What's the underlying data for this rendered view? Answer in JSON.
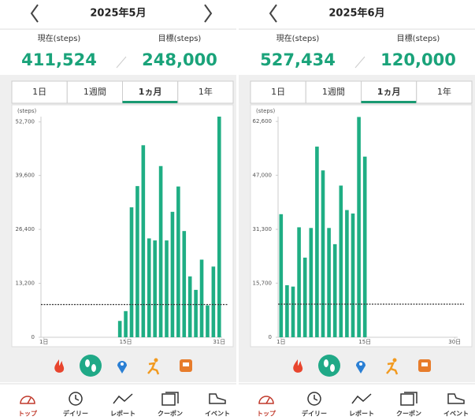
{
  "panels": [
    {
      "title": "2025年5月",
      "current_label": "現在(steps)",
      "current_value": "411,524",
      "goal_label": "目標(steps)",
      "goal_value": "248,000",
      "tabs": [
        "1日",
        "1週間",
        "1ヵ月",
        "1年"
      ],
      "selected_tab": 2,
      "chart": {
        "type": "bar",
        "y_label": "(steps)",
        "x": [
          14,
          15,
          16,
          17,
          18,
          19,
          20,
          21,
          22,
          23,
          24,
          25,
          26,
          27,
          28,
          29,
          30,
          31
        ],
        "values": [
          4000,
          6400,
          31800,
          37000,
          47000,
          24200,
          23700,
          41900,
          23700,
          30700,
          36900,
          26000,
          14900,
          11600,
          19000,
          7800,
          17300,
          54000
        ],
        "color": "#1fae84",
        "xlim": [
          0.5,
          31.5
        ],
        "xticks": [
          {
            "value": 1,
            "label": "1日"
          },
          {
            "value": 15,
            "label": "15日"
          },
          {
            "value": 31,
            "label": "31日"
          }
        ],
        "ylim": [
          0,
          54000
        ],
        "yticks": [
          0,
          {
            "value": 13200,
            "label": "13,200"
          },
          {
            "value": 26400,
            "label": "26,400"
          },
          {
            "value": 39600,
            "label": "39,600"
          },
          {
            "value": 52700,
            "label": "52,700"
          }
        ],
        "goal_line": 8000
      },
      "nav": [
        "トップ",
        "デイリー",
        "レポート",
        "クーポン",
        "イベント"
      ]
    },
    {
      "title": "2025年6月",
      "current_label": "現在(steps)",
      "current_value": "527,434",
      "goal_label": "目標(steps)",
      "goal_value": "120,000",
      "tabs": [
        "1日",
        "1週間",
        "1ヵ月",
        "1年"
      ],
      "selected_tab": 2,
      "chart": {
        "type": "bar",
        "y_label": "(steps)",
        "x": [
          1,
          2,
          3,
          4,
          5,
          6,
          7,
          8,
          9,
          10,
          11,
          12,
          13,
          14,
          15
        ],
        "values": [
          35700,
          15100,
          14700,
          31900,
          23100,
          31700,
          55300,
          48400,
          31700,
          27000,
          44000,
          36900,
          35900,
          63900,
          52400
        ],
        "color": "#1fae84",
        "xlim": [
          0.5,
          30.5
        ],
        "xticks": [
          {
            "value": 1,
            "label": "1日"
          },
          {
            "value": 15,
            "label": "15日"
          },
          {
            "value": 30,
            "label": "30日"
          }
        ],
        "ylim": [
          0,
          64000
        ],
        "yticks": [
          0,
          {
            "value": 15700,
            "label": "15,700"
          },
          {
            "value": 31300,
            "label": "31,300"
          },
          {
            "value": 47000,
            "label": "47,000"
          },
          {
            "value": 62600,
            "label": "62,600"
          }
        ],
        "goal_line": 9600
      },
      "nav": [
        "トップ",
        "デイリー",
        "レポート",
        "クーポン",
        "イベント"
      ]
    }
  ]
}
